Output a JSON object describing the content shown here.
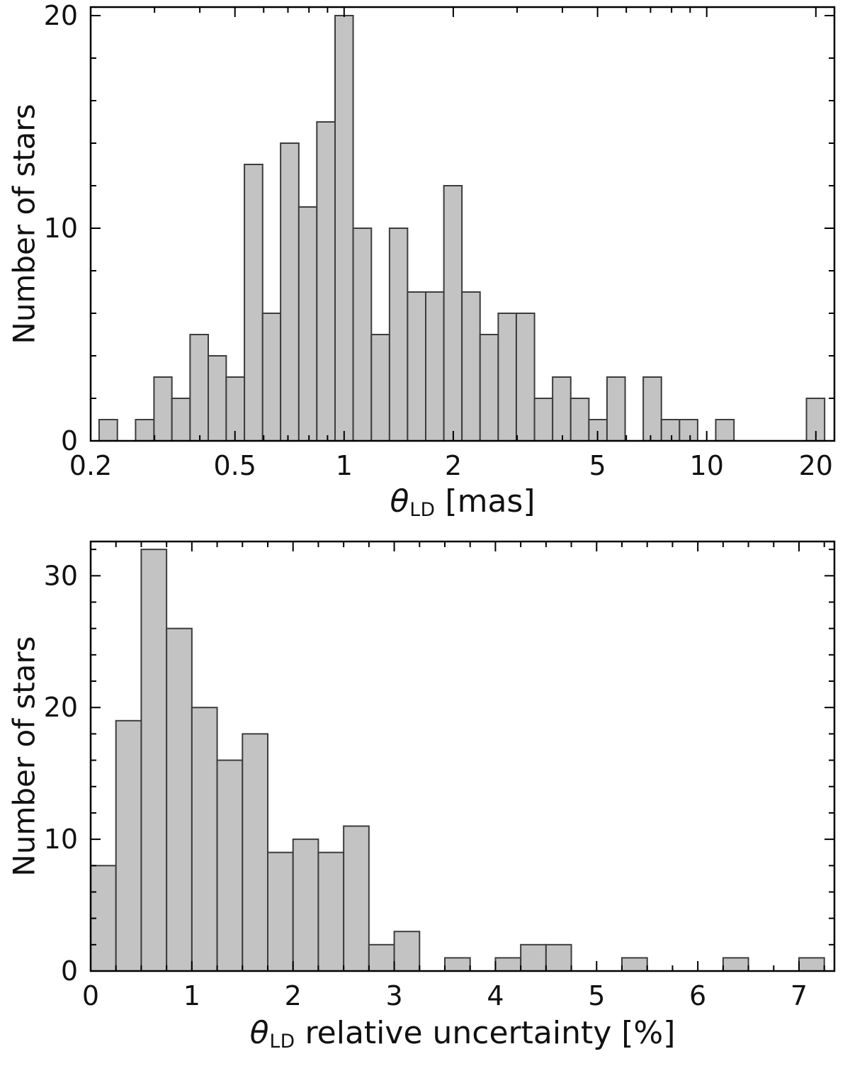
{
  "styles": {
    "background": "#ffffff",
    "bar_fill": "#c3c3c3",
    "bar_stroke": "#3d3d3d",
    "axis_color": "#000000",
    "text_color": "#111111"
  },
  "chart_data": [
    {
      "name": "theta-ld-histogram",
      "type": "bar",
      "subtype": "histogram",
      "x_scale": "log",
      "xlabel_theta": "θ",
      "xlabel_sub": "LD",
      "xlabel_rest": " [mas]",
      "ylabel": "Number of stars",
      "xlim": [
        0.2,
        22.5
      ],
      "ylim": [
        0,
        20.4
      ],
      "grid": false,
      "legend": false,
      "x_ticks": [
        0.2,
        0.5,
        1,
        2,
        5,
        10,
        20
      ],
      "x_tick_labels": [
        "0.2",
        "0.5",
        "1",
        "2",
        "5",
        "10",
        "20"
      ],
      "x_minor_ticks": [
        0.3,
        0.4,
        0.6,
        0.7,
        0.8,
        0.9,
        3,
        4,
        6,
        7,
        8,
        9
      ],
      "y_ticks": [
        0,
        10,
        20
      ],
      "y_tick_labels": [
        "0",
        "10",
        "20"
      ],
      "y_minor_ticks": [
        2,
        4,
        6,
        8,
        12,
        14,
        16,
        18
      ],
      "bin_edges": [
        0.211,
        0.237,
        0.266,
        0.299,
        0.335,
        0.376,
        0.422,
        0.473,
        0.531,
        0.596,
        0.668,
        0.75,
        0.841,
        0.944,
        1.059,
        1.189,
        1.334,
        1.496,
        1.679,
        1.884,
        2.113,
        2.371,
        2.661,
        2.985,
        3.35,
        3.758,
        4.217,
        4.732,
        5.309,
        5.957,
        6.683,
        7.499,
        8.414,
        9.441,
        10.59,
        11.89,
        13.34,
        14.96,
        16.79,
        18.84,
        21.14
      ],
      "counts": [
        1,
        0,
        1,
        3,
        2,
        5,
        4,
        3,
        13,
        6,
        14,
        11,
        15,
        20,
        10,
        5,
        10,
        7,
        7,
        12,
        7,
        5,
        6,
        6,
        2,
        3,
        2,
        1,
        3,
        0,
        3,
        1,
        1,
        0,
        1,
        0,
        0,
        0,
        0,
        2
      ]
    },
    {
      "name": "theta-ld-relative-uncertainty-histogram",
      "type": "bar",
      "subtype": "histogram",
      "x_scale": "linear",
      "xlabel_theta": "θ",
      "xlabel_sub": "LD",
      "xlabel_rest": " relative uncertainty [%]",
      "ylabel": "Number of stars",
      "xlim": [
        0,
        7.35
      ],
      "ylim": [
        0,
        32.6
      ],
      "grid": false,
      "legend": false,
      "x_ticks": [
        0,
        1,
        2,
        3,
        4,
        5,
        6,
        7
      ],
      "x_tick_labels": [
        "0",
        "1",
        "2",
        "3",
        "4",
        "5",
        "6",
        "7"
      ],
      "x_minor_ticks": [
        0.25,
        0.5,
        0.75,
        1.25,
        1.5,
        1.75,
        2.25,
        2.5,
        2.75,
        3.25,
        3.5,
        3.75,
        4.25,
        4.5,
        4.75,
        5.25,
        5.5,
        5.75,
        6.25,
        6.5,
        6.75,
        7.25
      ],
      "y_ticks": [
        0,
        10,
        20,
        30
      ],
      "y_tick_labels": [
        "0",
        "10",
        "20",
        "30"
      ],
      "y_minor_ticks": [
        2,
        4,
        6,
        8,
        12,
        14,
        16,
        18,
        22,
        24,
        26,
        28,
        32
      ],
      "bin_edges": [
        0,
        0.25,
        0.5,
        0.75,
        1,
        1.25,
        1.5,
        1.75,
        2,
        2.25,
        2.5,
        2.75,
        3,
        3.25,
        3.5,
        3.75,
        4,
        4.25,
        4.5,
        4.75,
        5,
        5.25,
        5.5,
        5.75,
        6,
        6.25,
        6.5,
        6.75,
        7,
        7.25
      ],
      "counts": [
        8,
        19,
        32,
        26,
        20,
        16,
        18,
        9,
        10,
        9,
        11,
        2,
        3,
        0,
        1,
        0,
        1,
        2,
        2,
        0,
        0,
        1,
        0,
        0,
        0,
        1,
        0,
        0,
        1
      ]
    }
  ]
}
